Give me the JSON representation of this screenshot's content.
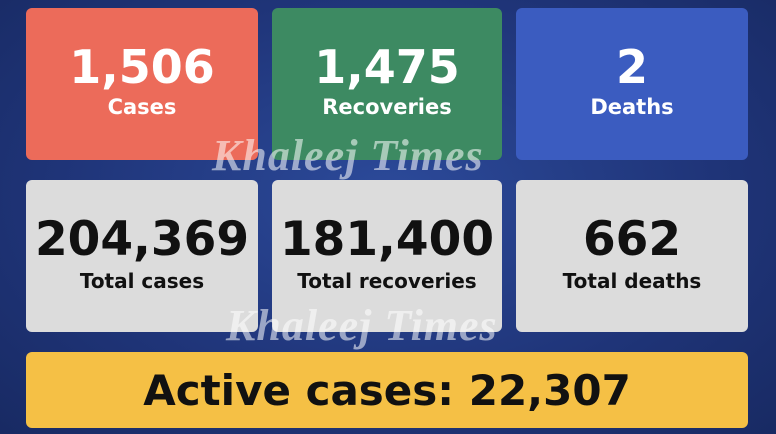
{
  "cards": [
    {
      "value": "1,506",
      "label": "Cases"
    },
    {
      "value": "1,475",
      "label": "Recoveries"
    },
    {
      "value": "2",
      "label": "Deaths"
    },
    {
      "value": "204,369",
      "label": "Total cases"
    },
    {
      "value": "181,400",
      "label": "Total recoveries"
    },
    {
      "value": "662",
      "label": "Total deaths"
    }
  ],
  "active": {
    "label": "Active cases:",
    "value": "22,307"
  },
  "watermark": "Khaleej Times"
}
